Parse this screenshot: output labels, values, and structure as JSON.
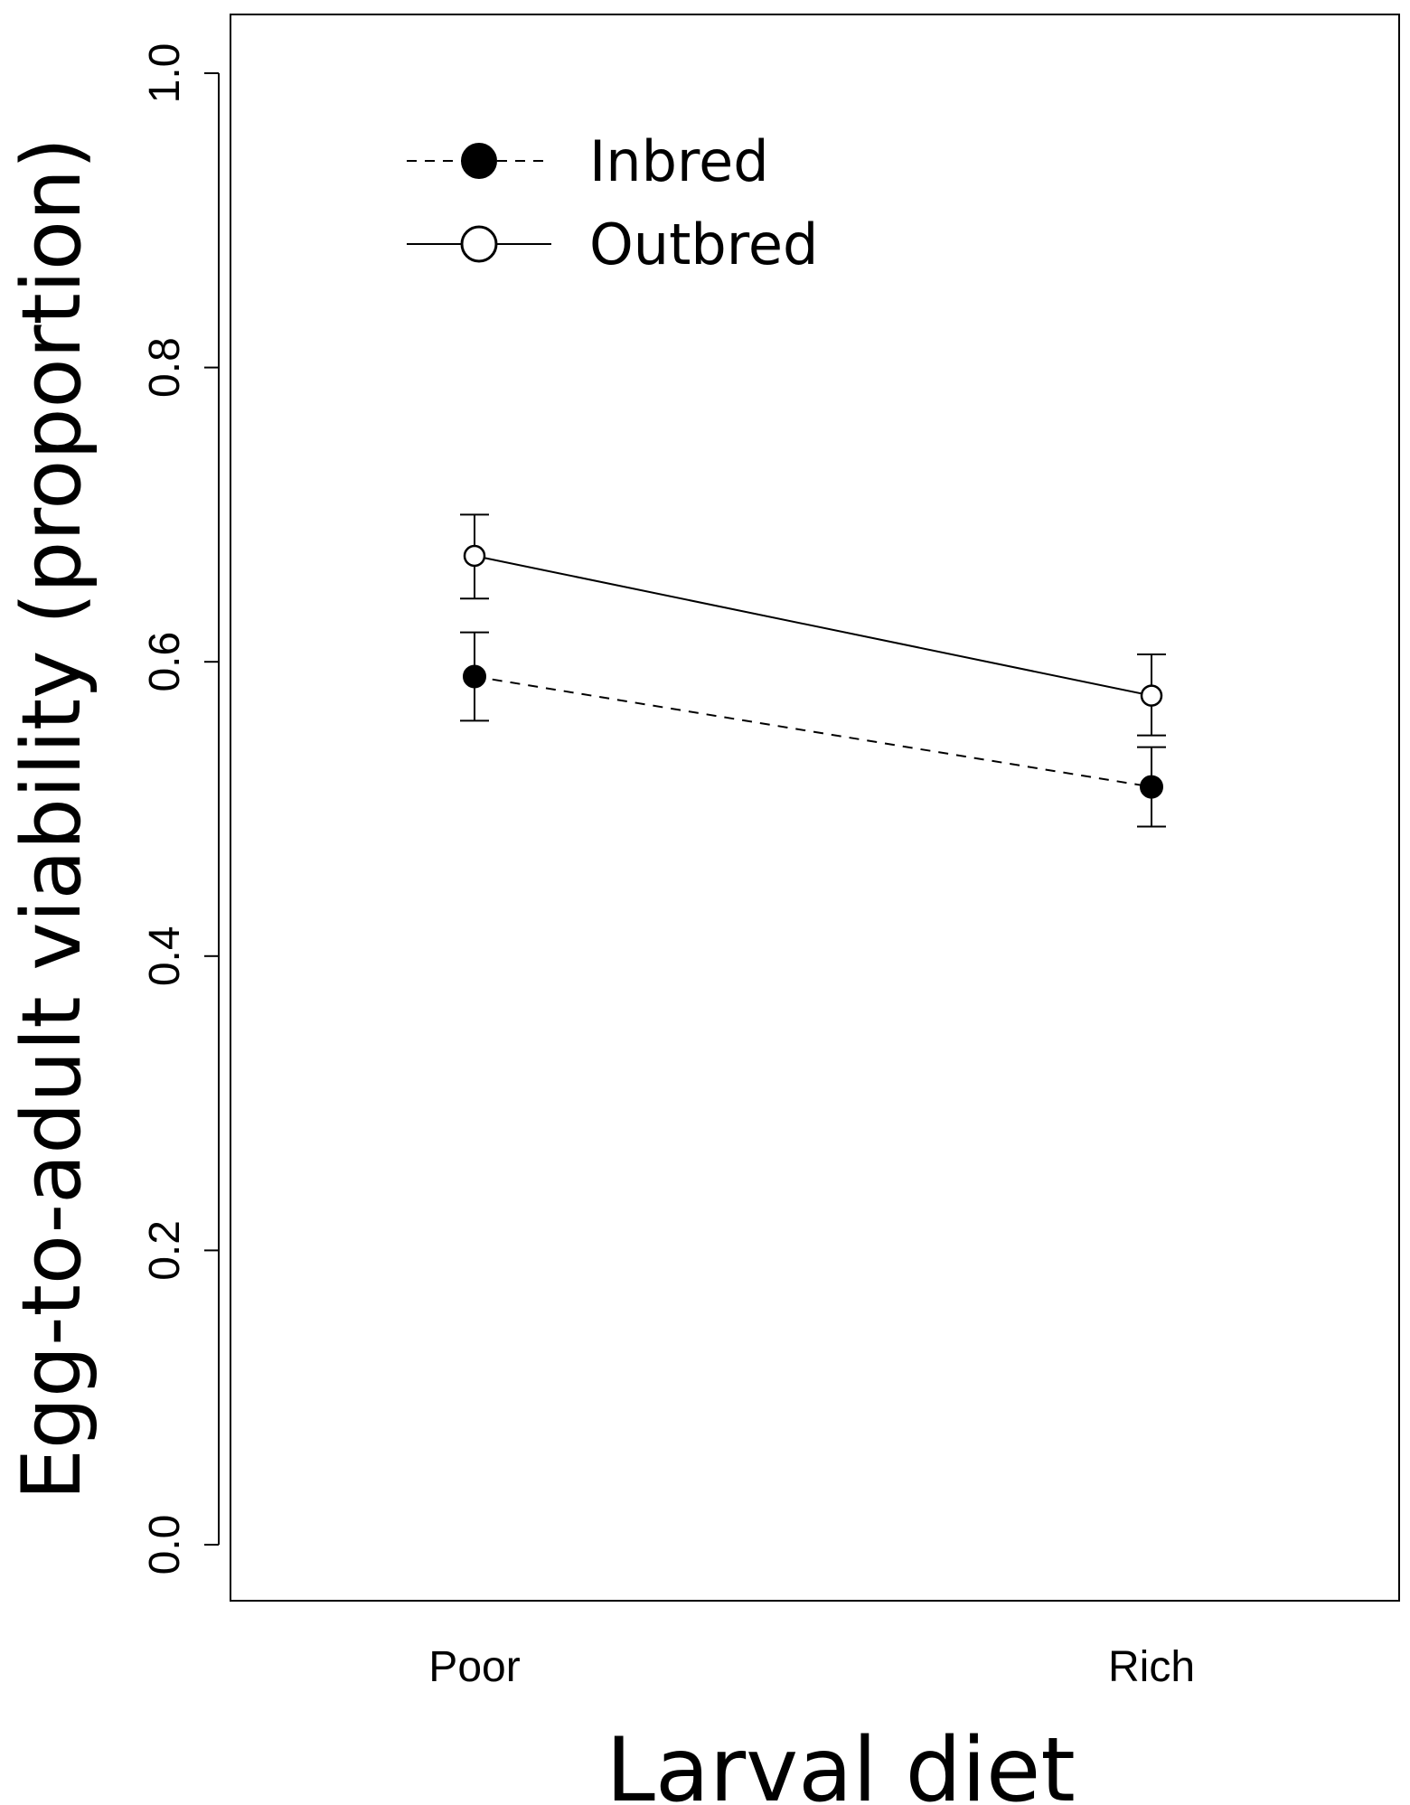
{
  "chart_data": {
    "type": "line",
    "title": "",
    "xlabel": "Larval diet",
    "ylabel": "Egg-to-adult viability (proportion)",
    "categories": [
      "Poor",
      "Rich"
    ],
    "ylim": [
      0.0,
      1.0
    ],
    "yticks": [
      0.0,
      0.2,
      0.4,
      0.6,
      0.8,
      1.0
    ],
    "ytick_labels": [
      "0.0",
      "0.2",
      "0.4",
      "0.6",
      "0.8",
      "1.0"
    ],
    "grid": false,
    "legend_position": "top-left",
    "series": [
      {
        "name": "Inbred",
        "values": [
          0.59,
          0.515
        ],
        "error_low": [
          0.56,
          0.488
        ],
        "error_high": [
          0.62,
          0.542
        ],
        "marker": "filled-circle",
        "line_style": "dashed",
        "color": "#000000"
      },
      {
        "name": "Outbred",
        "values": [
          0.672,
          0.577
        ],
        "error_low": [
          0.643,
          0.55
        ],
        "error_high": [
          0.7,
          0.605
        ],
        "marker": "open-circle",
        "line_style": "solid",
        "color": "#000000"
      }
    ]
  }
}
